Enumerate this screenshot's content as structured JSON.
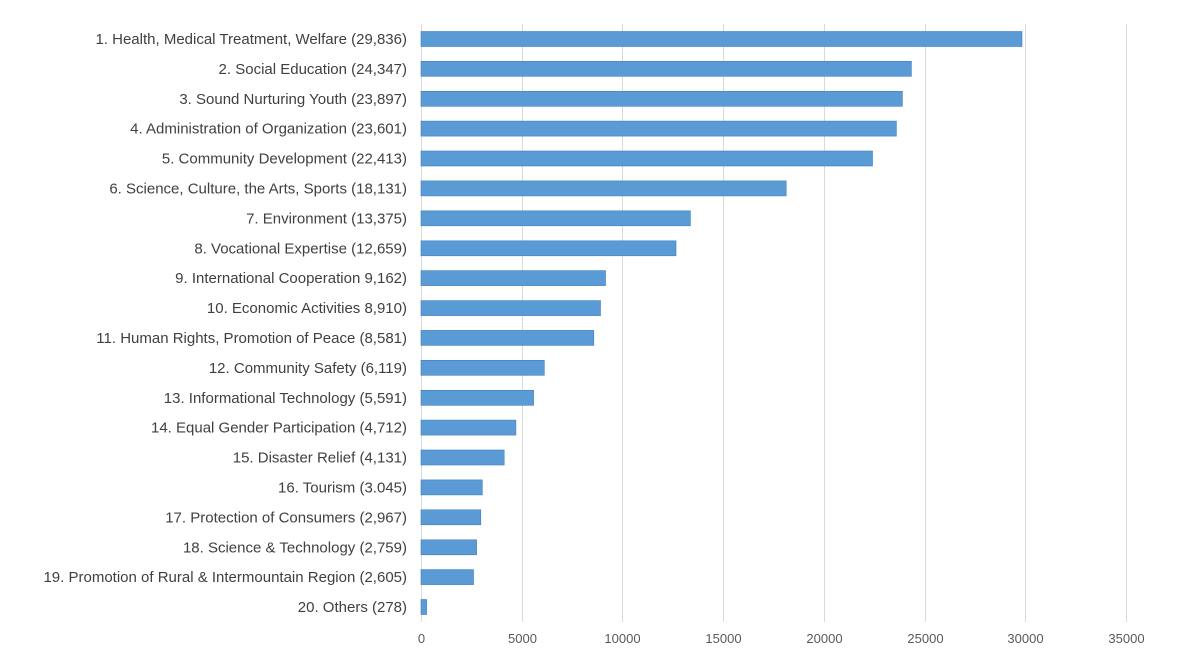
{
  "colors": {
    "bar": "#5b9bd5",
    "bar_stroke": "#3f7fc0",
    "grid": "#d9d9d9",
    "text": "#404040"
  },
  "chart_data": {
    "type": "bar",
    "orientation": "horizontal",
    "categories": [
      "1. Health, Medical Treatment, Welfare (29,836)",
      "2. Social Education (24,347)",
      "3. Sound Nurturing Youth (23,897)",
      "4. Administration of Organization (23,601)",
      "5. Community Development (22,413)",
      "6. Science, Culture, the Arts, Sports (18,131)",
      "7. Environment (13,375)",
      "8. Vocational Expertise (12,659)",
      "9. International Cooperation 9,162)",
      "10. Economic Activities 8,910)",
      "11. Human Rights, Promotion of Peace (8,581)",
      "12. Community Safety (6,119)",
      "13. Informational Technology (5,591)",
      "14. Equal Gender Participation (4,712)",
      "15. Disaster Relief (4,131)",
      "16. Tourism (3.045)",
      "17. Protection of Consumers (2,967)",
      "18. Science & Technology (2,759)",
      "19. Promotion of Rural & Intermountain Region (2,605)",
      "20. Others (278)"
    ],
    "values": [
      29836,
      24347,
      23897,
      23601,
      22413,
      18131,
      13375,
      12659,
      9162,
      8910,
      8581,
      6119,
      5591,
      4712,
      4131,
      3045,
      2967,
      2759,
      2605,
      278
    ],
    "xlim": [
      0,
      35000
    ],
    "x_ticks": [
      0,
      5000,
      10000,
      15000,
      20000,
      25000,
      30000,
      35000
    ],
    "x_tick_labels": [
      "0",
      "5000",
      "10000",
      "15000",
      "20000",
      "25000",
      "30000",
      "35000"
    ],
    "grid": "vertical",
    "legend": "none"
  }
}
